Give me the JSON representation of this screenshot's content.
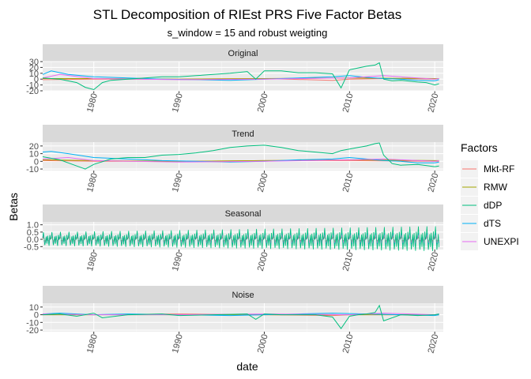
{
  "chart_data": {
    "type": "line",
    "title": "STL Decomposition of RIEst PRS Five Factor Betas",
    "subtitle": "s_window = 15 and robust weigting",
    "xlabel": "date",
    "ylabel": "Betas",
    "x_ticks": [
      "1980",
      "1990",
      "2000",
      "2010",
      "2020"
    ],
    "x_range": [
      1974,
      2021
    ],
    "grid": true,
    "legend": {
      "title": "Factors",
      "position": "right",
      "entries": [
        "Mkt-RF",
        "RMW",
        "dDP",
        "dTS",
        "UNEXPI"
      ]
    },
    "colors": {
      "Mkt-RF": "#F8766D",
      "RMW": "#A3A500",
      "dDP": "#00BF7D",
      "dTS": "#00B0F6",
      "UNEXPI": "#E76BF3"
    },
    "panels": [
      {
        "strip": "Original",
        "ylim": [
          -20,
          30
        ],
        "y_ticks": [
          30,
          20,
          10,
          0,
          -10,
          -20
        ],
        "y_tick_labels": [
          "30",
          "20",
          "10",
          "0",
          "-10",
          "-20"
        ],
        "series": [
          {
            "name": "dDP",
            "x": [
              1974,
              1976,
              1978,
              1979,
              1980,
              1981,
              1982,
              1984,
              1986,
              1988,
              1990,
              1992,
              1994,
              1996,
              1998,
              1999,
              2000,
              2002,
              2004,
              2006,
              2008,
              2009,
              2010,
              2011,
              2012,
              2013,
              2013.5,
              2014,
              2015,
              2016,
              2018,
              2019,
              2020,
              2020.5
            ],
            "y": [
              2,
              0,
              -6,
              -14,
              -18,
              -6,
              -2,
              0,
              2,
              4,
              4,
              6,
              8,
              10,
              13,
              0,
              14,
              14,
              11,
              11,
              9,
              -15,
              16,
              19,
              22,
              24,
              28,
              0,
              -3,
              -2,
              -5,
              -6,
              -10,
              -8
            ]
          },
          {
            "name": "dTS",
            "x": [
              1974,
              1975,
              1977,
              1980,
              1984,
              1988,
              1992,
              1996,
              2000,
              2004,
              2008,
              2010,
              2012,
              2014,
              2016,
              2018,
              2020,
              2020.5
            ],
            "y": [
              8,
              14,
              8,
              4,
              2,
              0,
              -1,
              -2,
              0,
              2,
              4,
              6,
              3,
              1,
              0,
              -2,
              -3,
              -1
            ]
          },
          {
            "name": "Mkt-RF",
            "x": [
              1974,
              1980,
              1990,
              2000,
              2008,
              2010,
              2015,
              2020,
              2020.5
            ],
            "y": [
              -1,
              0,
              0,
              1,
              -2,
              0,
              1,
              0,
              1
            ]
          },
          {
            "name": "RMW",
            "x": [
              1974,
              1980,
              1990,
              2000,
              2010,
              2020,
              2020.5
            ],
            "y": [
              1,
              1,
              0,
              1,
              2,
              1,
              1
            ]
          },
          {
            "name": "UNEXPI",
            "x": [
              1974,
              1976,
              1980,
              1990,
              2000,
              2010,
              2014,
              2020,
              2020.5
            ],
            "y": [
              2,
              8,
              1,
              -1,
              0,
              2,
              6,
              0,
              1
            ]
          }
        ]
      },
      {
        "strip": "Trend",
        "ylim": [
          -12,
          25
        ],
        "y_ticks": [
          20,
          10,
          0,
          -10
        ],
        "y_tick_labels": [
          "20",
          "10",
          "0",
          "-10"
        ],
        "series": [
          {
            "name": "dDP",
            "x": [
              1974,
              1976,
              1978,
              1979,
              1980,
              1982,
              1984,
              1986,
              1988,
              1990,
              1992,
              1994,
              1996,
              1998,
              2000,
              2002,
              2004,
              2006,
              2008,
              2009,
              2010,
              2011,
              2012,
              2013,
              2013.5,
              2014,
              2015,
              2016,
              2018,
              2020,
              2020.5
            ],
            "y": [
              6,
              2,
              -6,
              -10,
              -4,
              3,
              5,
              5,
              8,
              9,
              11,
              14,
              18,
              20,
              21,
              18,
              14,
              12,
              10,
              14,
              16,
              18,
              20,
              23,
              24,
              8,
              -3,
              -5,
              -4,
              -7,
              -6
            ]
          },
          {
            "name": "dTS",
            "x": [
              1974,
              1975,
              1977,
              1980,
              1984,
              1988,
              1992,
              1996,
              2000,
              2004,
              2008,
              2010,
              2012,
              2014,
              2016,
              2018,
              2020,
              2020.5
            ],
            "y": [
              12,
              13,
              10,
              5,
              3,
              1,
              0,
              -1,
              0,
              2,
              3,
              5,
              3,
              1,
              0,
              -2,
              -2,
              -1
            ]
          },
          {
            "name": "Mkt-RF",
            "x": [
              1974,
              1980,
              1990,
              2000,
              2010,
              2020,
              2020.5
            ],
            "y": [
              1,
              0,
              0,
              1,
              1,
              0,
              0
            ]
          },
          {
            "name": "RMW",
            "x": [
              1974,
              1980,
              1990,
              2000,
              2010,
              2020,
              2020.5
            ],
            "y": [
              2,
              1,
              0,
              1,
              2,
              1,
              1
            ]
          },
          {
            "name": "UNEXPI",
            "x": [
              1974,
              1977,
              1980,
              1990,
              2000,
              2010,
              2014,
              2020,
              2020.5
            ],
            "y": [
              3,
              5,
              1,
              -1,
              0,
              2,
              3,
              0,
              1
            ]
          }
        ]
      },
      {
        "strip": "Seasonal",
        "ylim": [
          -0.7,
          1.2
        ],
        "y_ticks": [
          1.0,
          0.5,
          0.0,
          -0.5
        ],
        "y_tick_labels": [
          "1.0",
          "0.5",
          "0.0",
          "-0.5"
        ],
        "seasonal_amplitude": {
          "dDP": 0.7,
          "dTS": 0.45,
          "Mkt-RF": 0.3,
          "RMW": 0.2,
          "UNEXPI": 0.3
        }
      },
      {
        "strip": "Noise",
        "ylim": [
          -22,
          15
        ],
        "y_ticks": [
          10,
          0,
          -10,
          -20
        ],
        "y_tick_labels": [
          "10",
          "0",
          "-10",
          "-20"
        ],
        "series": [
          {
            "name": "dDP",
            "x": [
              1974,
              1976,
              1978,
              1980,
              1981,
              1984,
              1988,
              1990,
              1994,
              1998,
              1999,
              2000,
              2002,
              2006,
              2008,
              2009,
              2010,
              2011,
              2012,
              2013,
              2013.5,
              2014,
              2016,
              2018,
              2020,
              2020.5
            ],
            "y": [
              0,
              1,
              -2,
              2,
              -4,
              0,
              1,
              -1,
              0,
              1,
              -6,
              1,
              0,
              0,
              -3,
              -18,
              -2,
              0,
              1,
              3,
              12,
              -8,
              0,
              -1,
              0,
              1
            ]
          },
          {
            "name": "dTS",
            "x": [
              1974,
              1976,
              1980,
              1984,
              1990,
              1996,
              2000,
              2004,
              2008,
              2012,
              2016,
              2020,
              2020.5
            ],
            "y": [
              1,
              2,
              0,
              1,
              0,
              -1,
              0,
              1,
              2,
              1,
              0,
              -1,
              0
            ]
          },
          {
            "name": "Mkt-RF",
            "x": [
              1974,
              1980,
              1990,
              2000,
              2008,
              2010,
              2020,
              2020.5
            ],
            "y": [
              0,
              0,
              1,
              0,
              -1,
              0,
              0,
              0
            ]
          },
          {
            "name": "RMW",
            "x": [
              1974,
              1990,
              2000,
              2010,
              2020,
              2020.5
            ],
            "y": [
              0,
              0,
              0,
              0,
              0,
              0
            ]
          },
          {
            "name": "UNEXPI",
            "x": [
              1974,
              1980,
              1990,
              2000,
              2010,
              2014,
              2020,
              2020.5
            ],
            "y": [
              1,
              0,
              0,
              1,
              0,
              2,
              0,
              1
            ]
          }
        ]
      }
    ]
  }
}
